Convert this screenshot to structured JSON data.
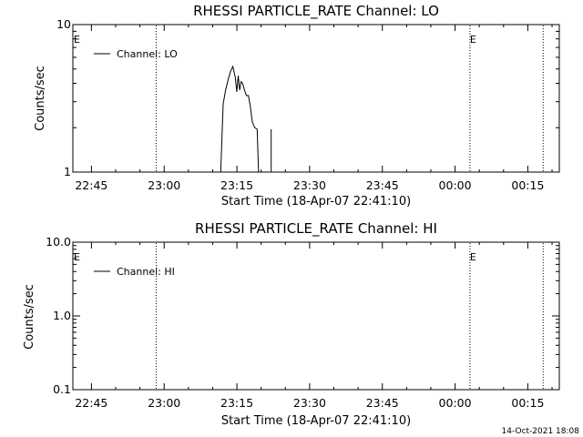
{
  "chart_data": [
    {
      "type": "line",
      "title": "RHESSI PARTICLE_RATE Channel: LO",
      "xlabel": "Start Time (18-Apr-07 22:41:10)",
      "ylabel": "Counts/sec",
      "yscale": "log",
      "ylim": [
        1,
        10
      ],
      "y_ticks": [
        "1",
        "10"
      ],
      "x_ticks": [
        "22:45",
        "23:00",
        "23:15",
        "23:30",
        "23:45",
        "00:00",
        "00:15"
      ],
      "x_tick_minutes": [
        3.83,
        18.83,
        33.83,
        48.83,
        63.83,
        78.83,
        93.83
      ],
      "xlim_minutes": [
        0,
        100.33
      ],
      "grid": false,
      "legend_position": "top-left",
      "series": [
        {
          "name": "Channel: LO",
          "points": [
            [
              30.5,
              1.0
            ],
            [
              31.0,
              2.9
            ],
            [
              31.5,
              3.6
            ],
            [
              32.0,
              4.2
            ],
            [
              32.5,
              4.8
            ],
            [
              33.0,
              5.2
            ],
            [
              33.5,
              4.4
            ],
            [
              33.8,
              3.5
            ],
            [
              34.1,
              4.5
            ],
            [
              34.4,
              3.6
            ],
            [
              34.7,
              4.1
            ],
            [
              35.0,
              4.0
            ],
            [
              35.4,
              3.6
            ],
            [
              35.8,
              3.3
            ],
            [
              36.2,
              3.3
            ],
            [
              36.6,
              2.8
            ],
            [
              37.0,
              2.2
            ],
            [
              37.5,
              2.0
            ],
            [
              38.0,
              1.95
            ],
            [
              38.3,
              1.0
            ]
          ],
          "spikes": [
            [
              40.9,
              1.95
            ]
          ]
        }
      ],
      "event_lines_minutes": [
        17.2,
        81.9,
        97.0
      ],
      "markers": [
        {
          "label": "E",
          "x_minutes": 0
        },
        {
          "label": "E",
          "x_minutes": 81.9
        }
      ]
    },
    {
      "type": "line",
      "title": "RHESSI PARTICLE_RATE Channel: HI",
      "xlabel": "Start Time (18-Apr-07 22:41:10)",
      "ylabel": "Counts/sec",
      "yscale": "log",
      "ylim": [
        0.1,
        10
      ],
      "y_ticks": [
        "0.1",
        "1.0",
        "10.0"
      ],
      "x_ticks": [
        "22:45",
        "23:00",
        "23:15",
        "23:30",
        "23:45",
        "00:00",
        "00:15"
      ],
      "x_tick_minutes": [
        3.83,
        18.83,
        33.83,
        48.83,
        63.83,
        78.83,
        93.83
      ],
      "xlim_minutes": [
        0,
        100.33
      ],
      "grid": false,
      "legend_position": "top-left",
      "series": [
        {
          "name": "Channel: HI",
          "points": []
        }
      ],
      "event_lines_minutes": [
        17.2,
        81.9,
        97.0
      ],
      "markers": [
        {
          "label": "E",
          "x_minutes": 0
        },
        {
          "label": "E",
          "x_minutes": 81.9
        }
      ]
    }
  ],
  "footer": {
    "timestamp": "14-Oct-2021 18:08"
  }
}
